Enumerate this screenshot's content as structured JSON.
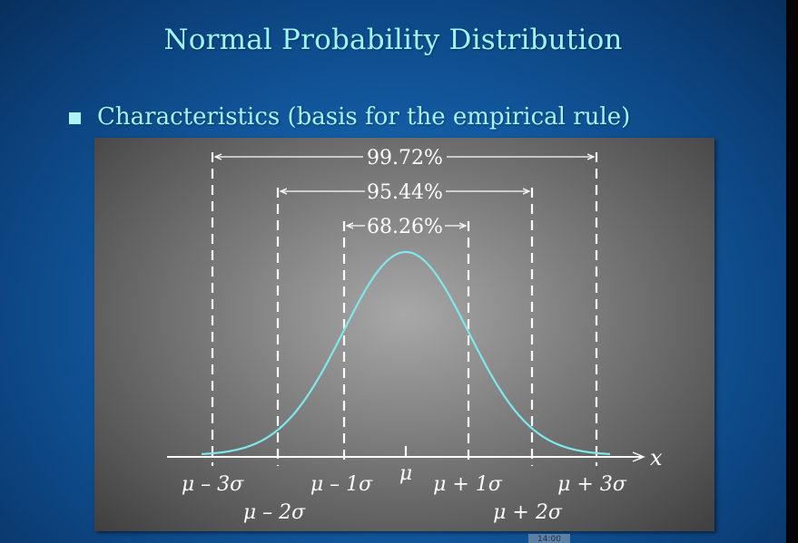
{
  "slide": {
    "title": "Normal Probability Distribution",
    "bullet": "Characteristics (basis for the empirical rule)",
    "footer_tab": "14:00"
  },
  "colors": {
    "title": "#9ff4f8",
    "curve": "#7fe8ee",
    "panel_center": "#a8a8a8",
    "background": "#12599f"
  },
  "diagram": {
    "percent_labels": [
      "99.72%",
      "95.44%",
      "68.26%"
    ],
    "axis_variable": "x",
    "tick_labels": {
      "m3": "μ – 3σ",
      "m2": "μ – 2σ",
      "m1": "μ – 1σ",
      "mu": "μ",
      "p1": "μ + 1σ",
      "p2": "μ + 2σ",
      "p3": "μ + 3σ"
    }
  }
}
